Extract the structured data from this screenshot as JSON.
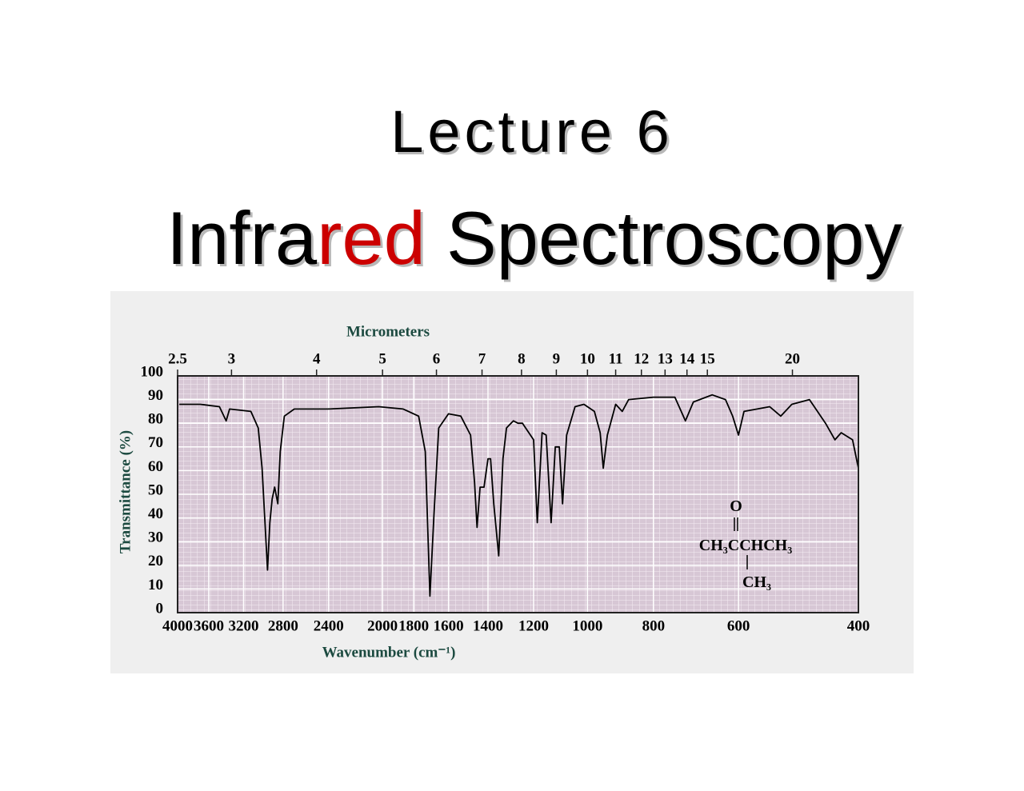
{
  "slide": {
    "heading": "Lecture 6",
    "title": [
      "Infra",
      "red",
      "Spectroscopy"
    ]
  },
  "chart_data": {
    "type": "line",
    "xlabel": "Wavenumber (cm⁻¹)",
    "ylabel": "Transmittance (%)",
    "x2label": "Micrometers",
    "xlog": true,
    "grid": true,
    "color": "#000000",
    "xlim": [
      4000,
      400
    ],
    "xticks": [
      4000,
      3600,
      3200,
      2800,
      2400,
      2000,
      1800,
      1600,
      1400,
      1200,
      1000,
      800,
      600,
      400
    ],
    "x2ticks": [
      2.5,
      3,
      4,
      5,
      6,
      7,
      8,
      9,
      10,
      11,
      12,
      13,
      14,
      15,
      20
    ],
    "ylim": [
      0,
      100
    ],
    "yticks": [
      0,
      10,
      20,
      30,
      40,
      50,
      60,
      70,
      80,
      90,
      100
    ],
    "annotations": [
      "O",
      "CH₃CCHCH₃",
      "CH₃"
    ],
    "x": [
      3977,
      3705,
      3472,
      3394,
      3355,
      3122,
      3045,
      3006,
      2951,
      2928,
      2905,
      2881,
      2850,
      2827,
      2788,
      2695,
      2400,
      2026,
      1865,
      1770,
      1731,
      1704,
      1681,
      1654,
      1600,
      1535,
      1485,
      1465,
      1453,
      1438,
      1419,
      1400,
      1388,
      1373,
      1350,
      1331,
      1315,
      1285,
      1265,
      1246,
      1200,
      1185,
      1166,
      1150,
      1131,
      1115,
      1100,
      1088,
      1073,
      1043,
      1012,
      977,
      958,
      948,
      935,
      909,
      889,
      870,
      800,
      744,
      718,
      699,
      656,
      627,
      612,
      600,
      589,
      540,
      520,
      501,
      472,
      447,
      433,
      424,
      408,
      400
    ],
    "values": [
      88,
      88,
      87,
      81,
      86,
      85,
      78,
      61,
      18,
      38,
      48,
      53,
      46,
      68,
      83,
      86,
      86,
      87,
      86,
      83,
      68,
      7,
      41,
      78,
      84,
      83,
      75,
      55,
      36,
      53,
      53,
      65,
      65,
      46,
      24,
      65,
      78,
      81,
      80,
      80,
      73,
      38,
      76,
      75,
      38,
      70,
      70,
      46,
      75,
      87,
      88,
      85,
      76,
      61,
      75,
      88,
      85,
      90,
      91,
      91,
      81,
      89,
      92,
      90,
      83,
      75,
      85,
      87,
      83,
      88,
      90,
      80,
      73,
      76,
      73,
      61
    ]
  }
}
